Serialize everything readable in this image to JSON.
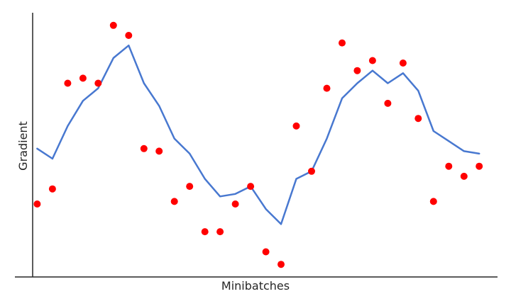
{
  "chart_data": {
    "type": "scatter",
    "title": "",
    "xlabel": "Minibatches",
    "ylabel": "Gradient",
    "grid": false,
    "legend": "none",
    "xlim": [
      -0.3,
      30.2
    ],
    "ylim": [
      -0.05,
      1.0
    ],
    "x": [
      0,
      1,
      2,
      3,
      4,
      5,
      6,
      7,
      8,
      9,
      10,
      11,
      12,
      13,
      14,
      15,
      16,
      17,
      18,
      19,
      20,
      21,
      22,
      23,
      24,
      25,
      26,
      27,
      28,
      29
    ],
    "series": [
      {
        "kind": "scatter",
        "color": "#ff0000",
        "values": [
          0.24,
          0.3,
          0.72,
          0.74,
          0.72,
          0.95,
          0.91,
          0.46,
          0.45,
          0.25,
          0.31,
          0.13,
          0.13,
          0.24,
          0.31,
          0.05,
          0.0,
          0.55,
          0.37,
          0.7,
          0.88,
          0.77,
          0.81,
          0.64,
          0.8,
          0.58,
          0.25,
          0.39,
          0.35,
          0.39
        ]
      },
      {
        "kind": "line",
        "color": "#4878d0",
        "values": [
          0.46,
          0.42,
          0.55,
          0.65,
          0.7,
          0.82,
          0.87,
          0.72,
          0.63,
          0.5,
          0.44,
          0.34,
          0.27,
          0.28,
          0.31,
          0.22,
          0.16,
          0.34,
          0.37,
          0.5,
          0.66,
          0.72,
          0.77,
          0.72,
          0.76,
          0.69,
          0.53,
          0.49,
          0.45,
          0.44
        ]
      }
    ]
  }
}
